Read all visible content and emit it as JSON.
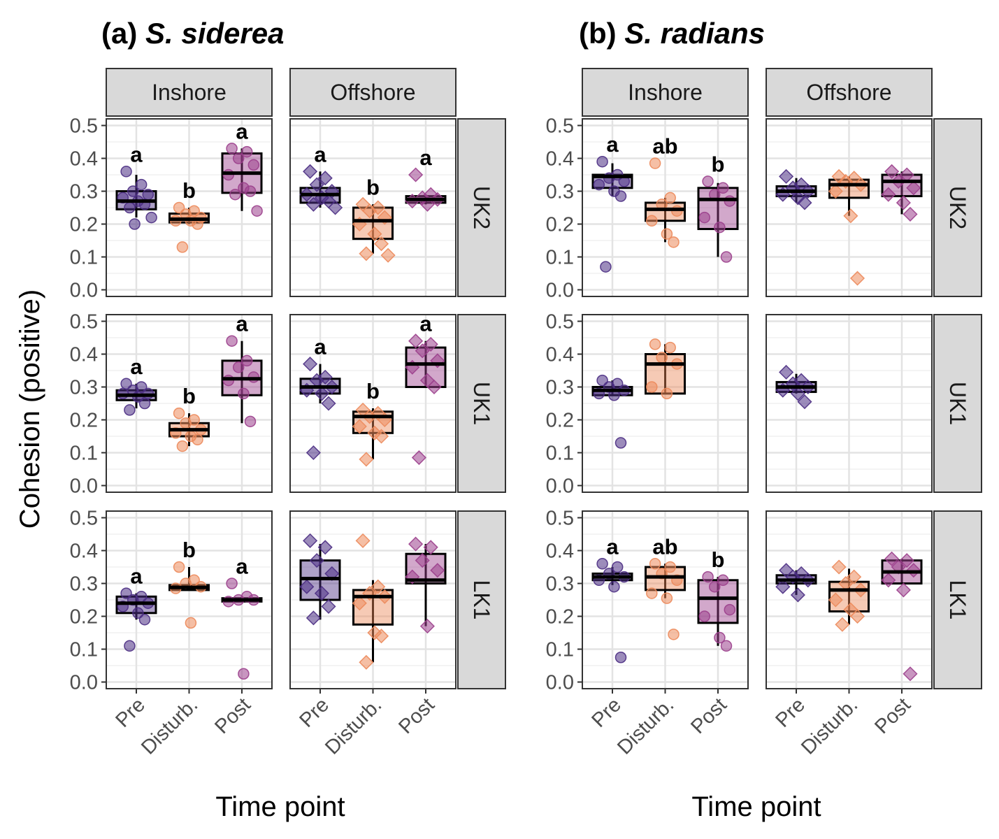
{
  "figure": {
    "ylabel": "Cohesion (positive)",
    "xlabel": "Time point",
    "yticks": [
      "0.0",
      "0.1",
      "0.2",
      "0.3",
      "0.4",
      "0.5"
    ],
    "ylim": [
      0,
      0.5
    ],
    "categories": [
      "Pre",
      "Disturb.",
      "Post"
    ],
    "colors": {
      "Pre": "#4b2e83",
      "Disturb.": "#ec8a5b",
      "Post": "#9b3f8c"
    }
  },
  "chart_data": [
    {
      "panel_title": "(a) ",
      "species": "S. siderea",
      "type": "box",
      "strips_top": [
        "Inshore",
        "Offshore"
      ],
      "strips_right": [
        "UK2",
        "UK1",
        "LK1"
      ],
      "facets": [
        {
          "row": "UK2",
          "col": "Inshore",
          "letters": [
            "a",
            "b",
            "a"
          ],
          "boxes": [
            {
              "cat": "Pre",
              "q1": 0.245,
              "med": 0.27,
              "q3": 0.3,
              "lo": 0.22,
              "hi": 0.35,
              "points": [
                0.36,
                0.32,
                0.3,
                0.29,
                0.28,
                0.27,
                0.26,
                0.25,
                0.22,
                0.2
              ]
            },
            {
              "cat": "Disturb.",
              "q1": 0.205,
              "med": 0.215,
              "q3": 0.232,
              "lo": 0.2,
              "hi": 0.25,
              "points": [
                0.25,
                0.24,
                0.23,
                0.22,
                0.21,
                0.21,
                0.2,
                0.13
              ]
            },
            {
              "cat": "Post",
              "q1": 0.295,
              "med": 0.355,
              "q3": 0.415,
              "lo": 0.24,
              "hi": 0.43,
              "points": [
                0.43,
                0.42,
                0.4,
                0.38,
                0.35,
                0.31,
                0.3,
                0.29,
                0.24
              ]
            }
          ]
        },
        {
          "row": "UK2",
          "col": "Offshore",
          "letters": [
            "a",
            "b",
            "a"
          ],
          "boxes": [
            {
              "cat": "Pre",
              "q1": 0.265,
              "med": 0.29,
              "q3": 0.31,
              "lo": 0.25,
              "hi": 0.36,
              "points": [
                0.36,
                0.34,
                0.32,
                0.3,
                0.29,
                0.28,
                0.27,
                0.26,
                0.25
              ]
            },
            {
              "cat": "Disturb.",
              "q1": 0.155,
              "med": 0.21,
              "q3": 0.25,
              "lo": 0.11,
              "hi": 0.26,
              "points": [
                0.26,
                0.25,
                0.24,
                0.22,
                0.2,
                0.17,
                0.14,
                0.11,
                0.105
              ]
            },
            {
              "cat": "Post",
              "q1": 0.265,
              "med": 0.275,
              "q3": 0.285,
              "lo": 0.26,
              "hi": 0.29,
              "points": [
                0.35,
                0.29,
                0.28,
                0.275,
                0.27,
                0.26
              ]
            }
          ]
        },
        {
          "row": "UK1",
          "col": "Inshore",
          "letters": [
            "a",
            "b",
            "a"
          ],
          "boxes": [
            {
              "cat": "Pre",
              "q1": 0.26,
              "med": 0.275,
              "q3": 0.29,
              "lo": 0.235,
              "hi": 0.31,
              "points": [
                0.31,
                0.3,
                0.29,
                0.28,
                0.28,
                0.27,
                0.25,
                0.23
              ]
            },
            {
              "cat": "Disturb.",
              "q1": 0.15,
              "med": 0.17,
              "q3": 0.19,
              "lo": 0.12,
              "hi": 0.22,
              "points": [
                0.22,
                0.2,
                0.19,
                0.17,
                0.16,
                0.15,
                0.14,
                0.12
              ]
            },
            {
              "cat": "Post",
              "q1": 0.275,
              "med": 0.325,
              "q3": 0.38,
              "lo": 0.19,
              "hi": 0.44,
              "points": [
                0.44,
                0.38,
                0.36,
                0.33,
                0.32,
                0.28,
                0.195
              ]
            }
          ]
        },
        {
          "row": "UK1",
          "col": "Offshore",
          "letters": [
            "a",
            "b",
            "a"
          ],
          "boxes": [
            {
              "cat": "Pre",
              "q1": 0.28,
              "med": 0.3,
              "q3": 0.325,
              "lo": 0.25,
              "hi": 0.37,
              "points": [
                0.37,
                0.33,
                0.32,
                0.3,
                0.29,
                0.28,
                0.25,
                0.1
              ]
            },
            {
              "cat": "Disturb.",
              "q1": 0.16,
              "med": 0.21,
              "q3": 0.225,
              "lo": 0.08,
              "hi": 0.235,
              "points": [
                0.23,
                0.22,
                0.21,
                0.2,
                0.18,
                0.16,
                0.15,
                0.08
              ]
            },
            {
              "cat": "Post",
              "q1": 0.3,
              "med": 0.37,
              "q3": 0.42,
              "lo": 0.3,
              "hi": 0.44,
              "points": [
                0.44,
                0.43,
                0.41,
                0.38,
                0.36,
                0.32,
                0.3,
                0.085
              ]
            }
          ]
        },
        {
          "row": "LK1",
          "col": "Inshore",
          "letters": [
            "a",
            "b",
            "a"
          ],
          "boxes": [
            {
              "cat": "Pre",
              "q1": 0.21,
              "med": 0.24,
              "q3": 0.26,
              "lo": 0.19,
              "hi": 0.27,
              "points": [
                0.27,
                0.26,
                0.25,
                0.24,
                0.23,
                0.21,
                0.19,
                0.11
              ]
            },
            {
              "cat": "Disturb.",
              "q1": 0.28,
              "med": 0.288,
              "q3": 0.295,
              "lo": 0.28,
              "hi": 0.35,
              "points": [
                0.35,
                0.31,
                0.3,
                0.29,
                0.285,
                0.18
              ]
            },
            {
              "cat": "Post",
              "q1": 0.245,
              "med": 0.25,
              "q3": 0.255,
              "lo": 0.245,
              "hi": 0.26,
              "points": [
                0.3,
                0.26,
                0.25,
                0.25,
                0.245,
                0.025
              ]
            }
          ]
        },
        {
          "row": "LK1",
          "col": "Offshore",
          "letters": [
            "",
            "",
            ""
          ],
          "boxes": [
            {
              "cat": "Pre",
              "q1": 0.25,
              "med": 0.315,
              "q3": 0.37,
              "lo": 0.19,
              "hi": 0.42,
              "points": [
                0.43,
                0.41,
                0.37,
                0.33,
                0.29,
                0.27,
                0.23,
                0.195
              ]
            },
            {
              "cat": "Disturb.",
              "q1": 0.175,
              "med": 0.26,
              "q3": 0.28,
              "lo": 0.06,
              "hi": 0.31,
              "points": [
                0.43,
                0.29,
                0.27,
                0.26,
                0.24,
                0.15,
                0.14,
                0.06
              ]
            },
            {
              "cat": "Post",
              "q1": 0.3,
              "med": 0.31,
              "q3": 0.39,
              "lo": 0.17,
              "hi": 0.42,
              "points": [
                0.42,
                0.41,
                0.37,
                0.34,
                0.32,
                0.17
              ]
            }
          ]
        }
      ]
    },
    {
      "panel_title": "(b) ",
      "species": "S. radians",
      "type": "box",
      "strips_top": [
        "Inshore",
        "Offshore"
      ],
      "strips_right": [
        "UK2",
        "UK1",
        "LK1"
      ],
      "facets": [
        {
          "row": "UK2",
          "col": "Inshore",
          "letters": [
            "a",
            "ab",
            "b"
          ],
          "boxes": [
            {
              "cat": "Pre",
              "q1": 0.31,
              "med": 0.345,
              "q3": 0.35,
              "lo": 0.285,
              "hi": 0.385,
              "points": [
                0.39,
                0.35,
                0.34,
                0.33,
                0.32,
                0.3,
                0.285,
                0.07
              ]
            },
            {
              "cat": "Disturb.",
              "q1": 0.21,
              "med": 0.245,
              "q3": 0.265,
              "lo": 0.145,
              "hi": 0.28,
              "points": [
                0.385,
                0.28,
                0.26,
                0.24,
                0.21,
                0.17,
                0.145
              ]
            },
            {
              "cat": "Post",
              "q1": 0.185,
              "med": 0.275,
              "q3": 0.31,
              "lo": 0.1,
              "hi": 0.325,
              "points": [
                0.33,
                0.31,
                0.29,
                0.27,
                0.22,
                0.19,
                0.1
              ]
            }
          ]
        },
        {
          "row": "UK2",
          "col": "Offshore",
          "letters": [
            "",
            "",
            ""
          ],
          "boxes": [
            {
              "cat": "Pre",
              "q1": 0.285,
              "med": 0.3,
              "q3": 0.315,
              "lo": 0.265,
              "hi": 0.34,
              "points": [
                0.345,
                0.32,
                0.31,
                0.3,
                0.29,
                0.28,
                0.265
              ]
            },
            {
              "cat": "Disturb.",
              "q1": 0.28,
              "med": 0.32,
              "q3": 0.335,
              "lo": 0.225,
              "hi": 0.345,
              "points": [
                0.345,
                0.34,
                0.33,
                0.32,
                0.3,
                0.225,
                0.035
              ]
            },
            {
              "cat": "Post",
              "q1": 0.285,
              "med": 0.33,
              "q3": 0.35,
              "lo": 0.23,
              "hi": 0.36,
              "points": [
                0.36,
                0.35,
                0.33,
                0.31,
                0.29,
                0.265,
                0.23
              ]
            }
          ]
        },
        {
          "row": "UK1",
          "col": "Inshore",
          "letters": [
            "",
            "",
            ""
          ],
          "boxes": [
            {
              "cat": "Pre",
              "q1": 0.275,
              "med": 0.29,
              "q3": 0.3,
              "lo": 0.275,
              "hi": 0.32,
              "points": [
                0.32,
                0.31,
                0.3,
                0.29,
                0.28,
                0.275,
                0.13
              ]
            },
            {
              "cat": "Disturb.",
              "q1": 0.28,
              "med": 0.37,
              "q3": 0.4,
              "lo": 0.28,
              "hi": 0.43,
              "points": [
                0.43,
                0.42,
                0.39,
                0.37,
                0.3,
                0.28
              ]
            },
            null
          ]
        },
        {
          "row": "UK1",
          "col": "Offshore",
          "letters": [
            "",
            "",
            ""
          ],
          "boxes": [
            {
              "cat": "Pre",
              "q1": 0.285,
              "med": 0.3,
              "q3": 0.315,
              "lo": 0.28,
              "hi": 0.34,
              "points": [
                0.345,
                0.32,
                0.31,
                0.3,
                0.29,
                0.28,
                0.255
              ]
            },
            null,
            null
          ]
        },
        {
          "row": "LK1",
          "col": "Inshore",
          "letters": [
            "a",
            "ab",
            "b"
          ],
          "boxes": [
            {
              "cat": "Pre",
              "q1": 0.31,
              "med": 0.32,
              "q3": 0.33,
              "lo": 0.295,
              "hi": 0.35,
              "points": [
                0.36,
                0.35,
                0.33,
                0.32,
                0.31,
                0.29,
                0.075
              ]
            },
            {
              "cat": "Disturb.",
              "q1": 0.28,
              "med": 0.32,
              "q3": 0.35,
              "lo": 0.255,
              "hi": 0.36,
              "points": [
                0.36,
                0.35,
                0.33,
                0.31,
                0.27,
                0.255,
                0.145
              ]
            },
            {
              "cat": "Post",
              "q1": 0.18,
              "med": 0.255,
              "q3": 0.31,
              "lo": 0.11,
              "hi": 0.32,
              "points": [
                0.32,
                0.31,
                0.29,
                0.22,
                0.2,
                0.135,
                0.11
              ]
            }
          ]
        },
        {
          "row": "LK1",
          "col": "Offshore",
          "letters": [
            "",
            "",
            ""
          ],
          "boxes": [
            {
              "cat": "Pre",
              "q1": 0.3,
              "med": 0.31,
              "q3": 0.325,
              "lo": 0.265,
              "hi": 0.34,
              "points": [
                0.34,
                0.33,
                0.32,
                0.31,
                0.29,
                0.265
              ]
            },
            {
              "cat": "Disturb.",
              "q1": 0.215,
              "med": 0.28,
              "q3": 0.305,
              "lo": 0.175,
              "hi": 0.345,
              "points": [
                0.35,
                0.32,
                0.3,
                0.28,
                0.25,
                0.22,
                0.2,
                0.175
              ]
            },
            {
              "cat": "Post",
              "q1": 0.3,
              "med": 0.335,
              "q3": 0.37,
              "lo": 0.3,
              "hi": 0.375,
              "points": [
                0.375,
                0.37,
                0.35,
                0.34,
                0.31,
                0.28,
                0.025
              ]
            }
          ]
        }
      ]
    }
  ]
}
